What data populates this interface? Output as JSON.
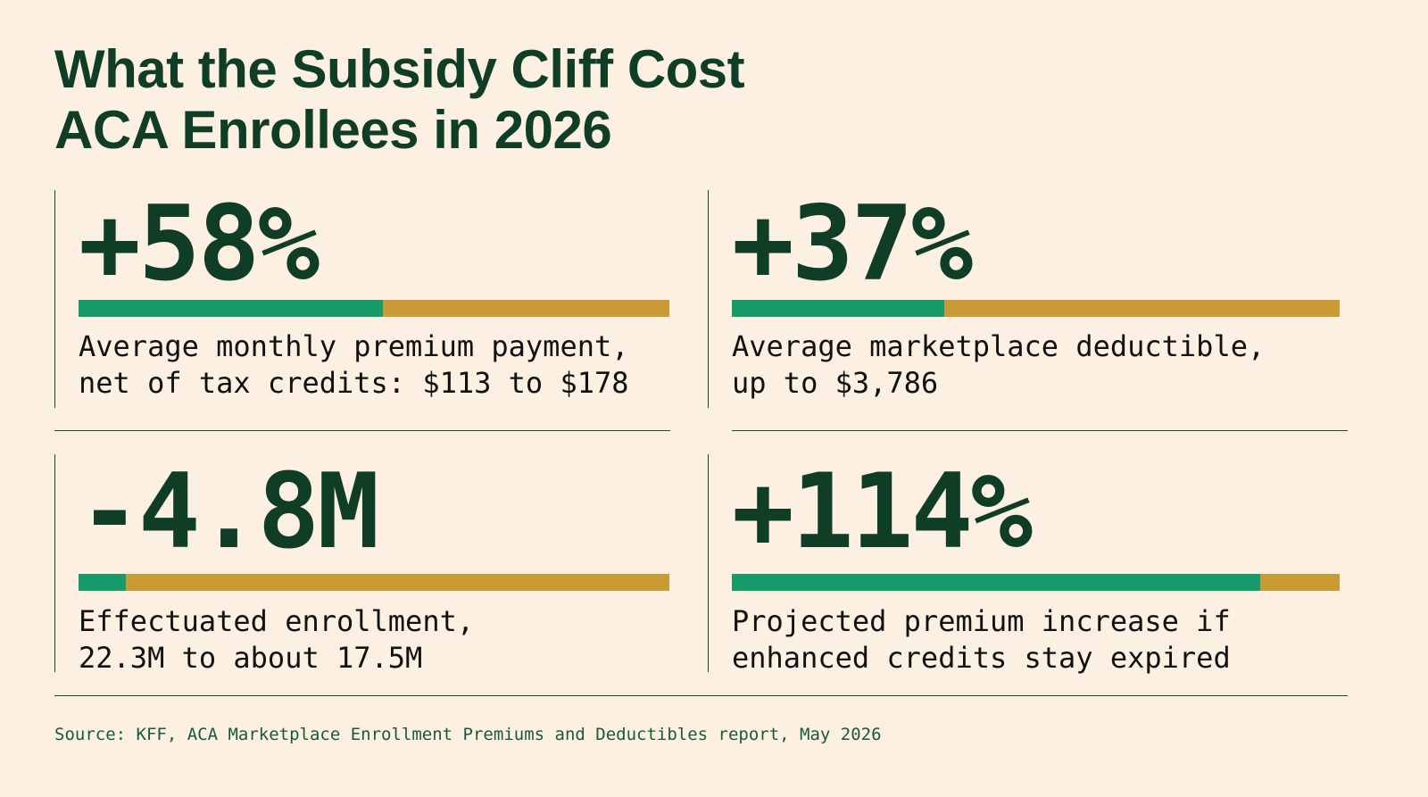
{
  "title": {
    "line1": "What the Subsidy Cliff Cost",
    "line2": "ACA Enrollees in 2026"
  },
  "stats": [
    {
      "value": "+58%",
      "fill_fraction": 0.515,
      "desc_line1": "Average monthly premium payment,",
      "desc_line2": "net of tax credits: $113 to $178"
    },
    {
      "value": "+37%",
      "fill_fraction": 0.35,
      "desc_line1": "Average marketplace deductible,",
      "desc_line2": "up to $3,786"
    },
    {
      "value": "-4.8M",
      "fill_fraction": 0.08,
      "desc_line1": "Effectuated enrollment,",
      "desc_line2": "22.3M to about 17.5M"
    },
    {
      "value": "+114%",
      "fill_fraction": 0.87,
      "desc_line1": "Projected premium increase if",
      "desc_line2": "enhanced credits stay expired"
    }
  ],
  "colors": {
    "background": "#fbf0e1",
    "heading": "#0f3d26",
    "bar_fill": "#189b6b",
    "bar_track": "#c99a35"
  },
  "source": "Source: KFF, ACA Marketplace Enrollment Premiums and Deductibles report, May 2026"
}
